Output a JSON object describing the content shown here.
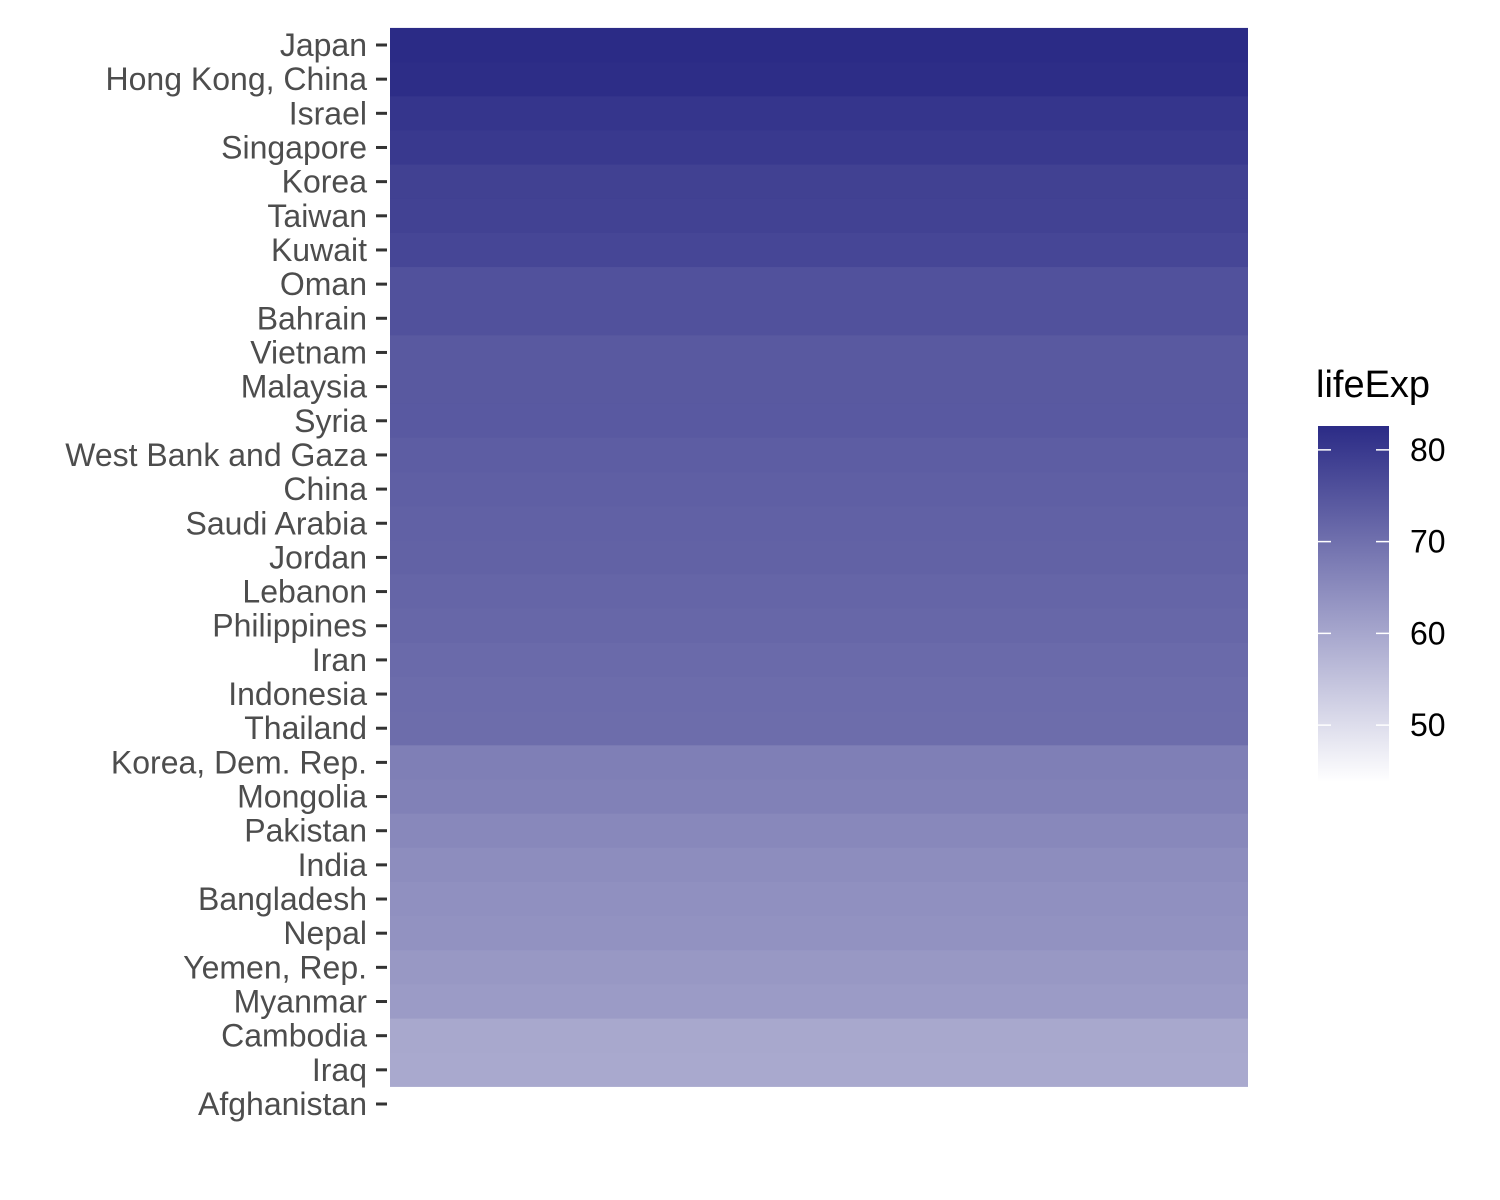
{
  "chart_data": {
    "type": "heatmap",
    "title": "",
    "xlabel": "",
    "ylabel": "",
    "categories": [
      "Japan",
      "Hong Kong, China",
      "Israel",
      "Singapore",
      "Korea",
      "Taiwan",
      "Kuwait",
      "Oman",
      "Bahrain",
      "Vietnam",
      "Malaysia",
      "Syria",
      "West Bank and Gaza",
      "China",
      "Saudi Arabia",
      "Jordan",
      "Lebanon",
      "Philippines",
      "Iran",
      "Indonesia",
      "Thailand",
      "Korea, Dem. Rep.",
      "Mongolia",
      "Pakistan",
      "India",
      "Bangladesh",
      "Nepal",
      "Yemen, Rep.",
      "Myanmar",
      "Cambodia",
      "Iraq",
      "Afghanistan"
    ],
    "values": [
      82.6,
      82.2,
      80.7,
      80.0,
      78.6,
      78.4,
      77.6,
      75.6,
      75.6,
      74.2,
      74.2,
      74.1,
      73.4,
      73.0,
      72.8,
      72.5,
      72.0,
      71.7,
      71.0,
      70.7,
      70.6,
      67.3,
      66.8,
      65.5,
      64.7,
      64.1,
      63.8,
      62.7,
      62.1,
      59.7,
      59.5,
      43.8
    ],
    "legend": {
      "title": "lifeExp",
      "position": "right",
      "ticks": [
        "50",
        "60",
        "70",
        "80"
      ],
      "tick_values": [
        50,
        60,
        70,
        80
      ],
      "range": [
        43.8,
        82.6
      ],
      "color_low": "#ffffff",
      "color_high": "#2b2b86"
    },
    "grid": false
  }
}
